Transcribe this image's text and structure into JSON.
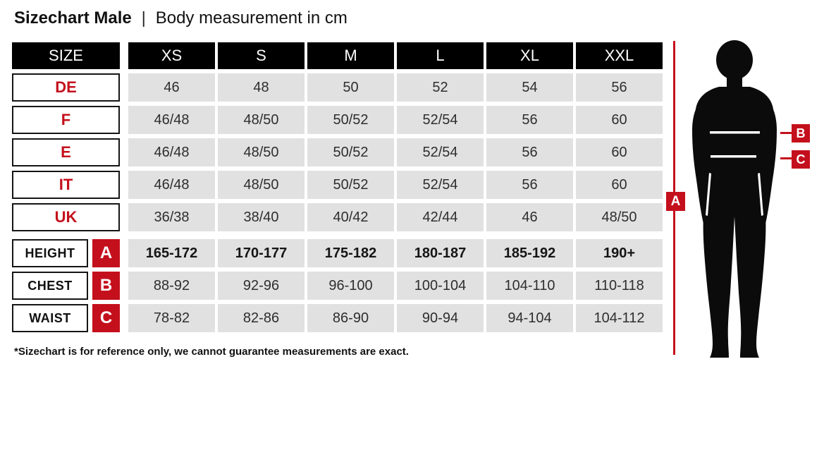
{
  "title": {
    "main": "Sizechart Male",
    "separator": "|",
    "subtitle": "Body measurement in cm"
  },
  "colors": {
    "accent_red": "#c4101c",
    "header_bg": "#000000",
    "cell_bg": "#e1e1e1",
    "value_text": "#2e2e2e"
  },
  "chart_data": {
    "type": "table",
    "title": "Sizechart Male | Body measurement in cm",
    "columns": [
      "SIZE",
      "XS",
      "S",
      "M",
      "L",
      "XL",
      "XXL"
    ],
    "rows": [
      [
        "DE",
        "46",
        "48",
        "50",
        "52",
        "54",
        "56"
      ],
      [
        "F",
        "46/48",
        "48/50",
        "50/52",
        "52/54",
        "56",
        "60"
      ],
      [
        "E",
        "46/48",
        "48/50",
        "50/52",
        "52/54",
        "56",
        "60"
      ],
      [
        "IT",
        "46/48",
        "48/50",
        "50/52",
        "52/54",
        "56",
        "60"
      ],
      [
        "UK",
        "36/38",
        "38/40",
        "40/42",
        "42/44",
        "46",
        "48/50"
      ],
      [
        "HEIGHT (A)",
        "165-172",
        "170-177",
        "175-182",
        "180-187",
        "185-192",
        "190+"
      ],
      [
        "CHEST (B)",
        "88-92",
        "92-96",
        "96-100",
        "100-104",
        "104-110",
        "110-118"
      ],
      [
        "WAIST (C)",
        "78-82",
        "82-86",
        "86-90",
        "90-94",
        "94-104",
        "104-112"
      ]
    ]
  },
  "table": {
    "header": [
      "SIZE",
      "XS",
      "S",
      "M",
      "L",
      "XL",
      "XXL"
    ],
    "size_rows": [
      {
        "label": "DE",
        "values": [
          "46",
          "48",
          "50",
          "52",
          "54",
          "56"
        ]
      },
      {
        "label": "F",
        "values": [
          "46/48",
          "48/50",
          "50/52",
          "52/54",
          "56",
          "60"
        ]
      },
      {
        "label": "E",
        "values": [
          "46/48",
          "48/50",
          "50/52",
          "52/54",
          "56",
          "60"
        ]
      },
      {
        "label": "IT",
        "values": [
          "46/48",
          "48/50",
          "50/52",
          "52/54",
          "56",
          "60"
        ]
      },
      {
        "label": "UK",
        "values": [
          "36/38",
          "38/40",
          "40/42",
          "42/44",
          "46",
          "48/50"
        ]
      }
    ],
    "measurement_rows": [
      {
        "label": "HEIGHT",
        "marker": "A",
        "bold": true,
        "values": [
          "165-172",
          "170-177",
          "175-182",
          "180-187",
          "185-192",
          "190+"
        ]
      },
      {
        "label": "CHEST",
        "marker": "B",
        "bold": false,
        "values": [
          "88-92",
          "92-96",
          "96-100",
          "100-104",
          "104-110",
          "110-118"
        ]
      },
      {
        "label": "WAIST",
        "marker": "C",
        "bold": false,
        "values": [
          "78-82",
          "82-86",
          "86-90",
          "90-94",
          "94-104",
          "104-112"
        ]
      }
    ]
  },
  "footnote": "*Sizechart is for reference only, we cannot guarantee measurements are exact.",
  "figure": {
    "markers": {
      "a": "A",
      "b": "B",
      "c": "C"
    }
  }
}
